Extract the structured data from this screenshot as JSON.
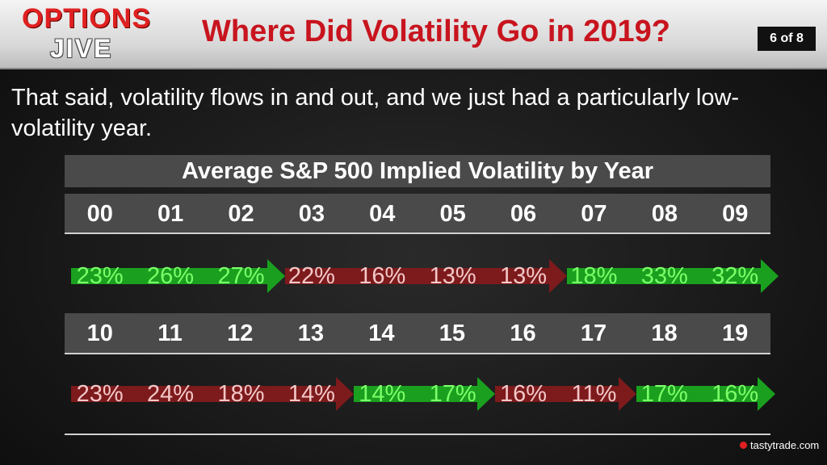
{
  "header": {
    "logo_top": "OPTIONS",
    "logo_bottom": "JIVE",
    "title": "Where Did Volatility Go in 2019?",
    "page_indicator": "6 of 8"
  },
  "intro_text": "That said, volatility flows in and out, and we just had a particularly low-volatility year.",
  "table": {
    "title": "Average S&P 500 Implied Volatility by Year",
    "row1_years": [
      "00",
      "01",
      "02",
      "03",
      "04",
      "05",
      "06",
      "07",
      "08",
      "09"
    ],
    "row1_values": [
      "23%",
      "26%",
      "27%",
      "22%",
      "16%",
      "13%",
      "13%",
      "18%",
      "33%",
      "32%"
    ],
    "row2_years": [
      "10",
      "11",
      "12",
      "13",
      "14",
      "15",
      "16",
      "17",
      "18",
      "19"
    ],
    "row2_values": [
      "23%",
      "24%",
      "18%",
      "14%",
      "14%",
      "17%",
      "16%",
      "11%",
      "17%",
      "16%"
    ]
  },
  "colors": {
    "up": "#1aa01e",
    "down": "#7d1a1c",
    "title_red": "#c8141e"
  },
  "footer": {
    "brand": "tastytrade.com"
  }
}
